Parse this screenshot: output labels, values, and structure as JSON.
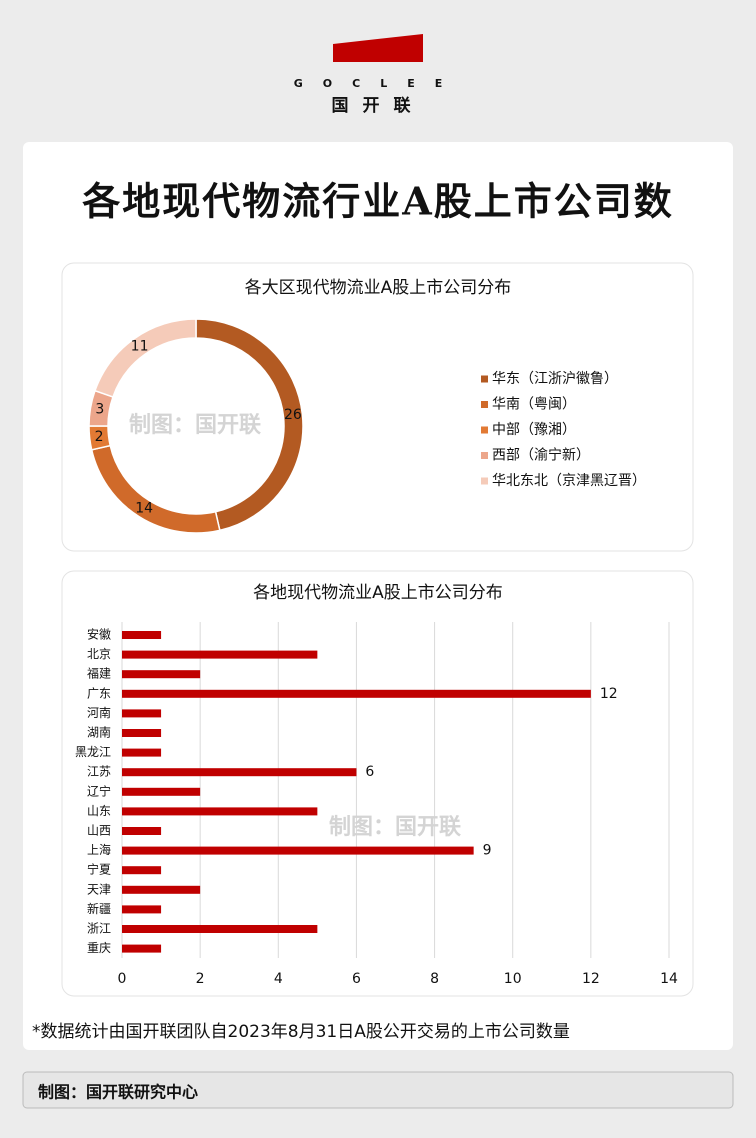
{
  "header": {
    "brand": "GOCLEE",
    "name": "国开联"
  },
  "title": "各地现代物流行业A股上市公司数",
  "watermark": "制图：国开联",
  "chart_data": [
    {
      "type": "pie",
      "title": "各大区现代物流业A股上市公司分布",
      "categories": [
        "华东（江浙沪徽鲁）",
        "华南（粤闽）",
        "中部（豫湘）",
        "西部（渝宁新）",
        "华北东北（京津黑辽晋）"
      ],
      "values": [
        26,
        14,
        2,
        3,
        11
      ],
      "colors": [
        "#b35a22",
        "#d06a2a",
        "#e27a34",
        "#eca68b",
        "#f5cbb9"
      ],
      "legend": "right"
    },
    {
      "type": "bar",
      "orientation": "horizontal",
      "title": "各地现代物流业A股上市公司分布",
      "categories": [
        "安徽",
        "北京",
        "福建",
        "广东",
        "河南",
        "湖南",
        "黑龙江",
        "江苏",
        "辽宁",
        "山东",
        "山西",
        "上海",
        "宁夏",
        "天津",
        "新疆",
        "浙江",
        "重庆"
      ],
      "values": [
        1,
        5,
        2,
        12,
        1,
        1,
        1,
        6,
        2,
        5,
        1,
        9,
        1,
        2,
        1,
        5,
        1
      ],
      "value_labels": [
        null,
        null,
        null,
        "12",
        null,
        null,
        null,
        "6",
        null,
        null,
        null,
        "9",
        null,
        null,
        null,
        null,
        null
      ],
      "color": "#c00000",
      "xlim": [
        0,
        14
      ],
      "xticks": [
        0,
        2,
        4,
        6,
        8,
        10,
        12,
        14
      ],
      "grid": true
    }
  ],
  "footnote": "*数据统计由国开联团队自2023年8月31日A股公开交易的上市公司数量",
  "footer": "制图：国开联研究中心"
}
